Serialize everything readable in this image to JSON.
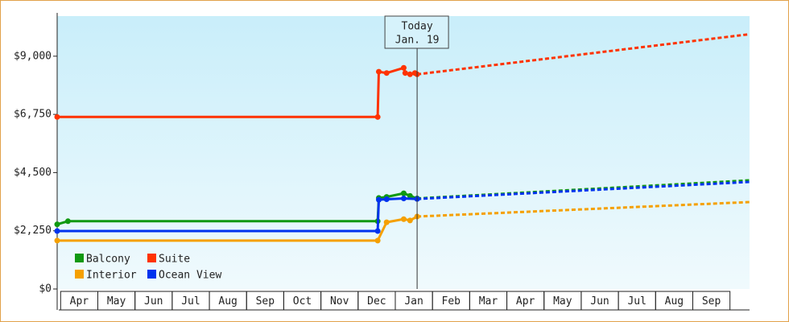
{
  "chart_data": {
    "type": "line",
    "months": [
      "Apr",
      "May",
      "Jun",
      "Jul",
      "Aug",
      "Sep",
      "Oct",
      "Nov",
      "Dec",
      "Jan",
      "Feb",
      "Mar",
      "Apr",
      "May",
      "Jun",
      "Jul",
      "Aug",
      "Sep"
    ],
    "xlim": [
      -0.05,
      18.57
    ],
    "ylim": [
      0,
      10550
    ],
    "yticks": [
      {
        "value": 0,
        "label": "$0"
      },
      {
        "value": 2250,
        "label": "$2,250"
      },
      {
        "value": 4500,
        "label": "$4,500"
      },
      {
        "value": 6750,
        "label": "$6,750"
      },
      {
        "value": 9000,
        "label": "$9,000"
      }
    ],
    "today": {
      "x": 9.63,
      "label": "Today",
      "date": "Jan. 19"
    },
    "series": [
      {
        "name": "Balcony",
        "color": "#119911",
        "x": [
          -0.05,
          0.24,
          8.57,
          8.6,
          8.81,
          9.27,
          9.44,
          9.63
        ],
        "values": [
          2500,
          2620,
          2620,
          3520,
          3560,
          3700,
          3600,
          3500
        ],
        "forecast_x": [
          9.63,
          18.57
        ],
        "forecast_values": [
          3500,
          4200
        ]
      },
      {
        "name": "Suite",
        "color": "#ff3300",
        "x": [
          -0.05,
          8.57,
          8.6,
          8.81,
          9.27,
          9.31,
          9.44,
          9.57,
          9.63
        ],
        "values": [
          6650,
          6650,
          8400,
          8350,
          8550,
          8350,
          8300,
          8350,
          8300
        ],
        "forecast_x": [
          9.63,
          18.57
        ],
        "forecast_values": [
          8300,
          9850
        ]
      },
      {
        "name": "Interior",
        "color": "#f5a000",
        "x": [
          -0.05,
          8.57,
          8.81,
          9.27,
          9.44,
          9.63
        ],
        "values": [
          1870,
          1870,
          2580,
          2700,
          2650,
          2800
        ],
        "forecast_x": [
          9.63,
          18.57
        ],
        "forecast_values": [
          2800,
          3360
        ]
      },
      {
        "name": "Ocean View",
        "color": "#0033ee",
        "x": [
          -0.05,
          8.57,
          8.6,
          8.81,
          9.27,
          9.63
        ],
        "values": [
          2240,
          2240,
          3450,
          3470,
          3500,
          3480
        ],
        "forecast_x": [
          9.63,
          18.57
        ],
        "forecast_values": [
          3480,
          4140
        ]
      }
    ]
  }
}
